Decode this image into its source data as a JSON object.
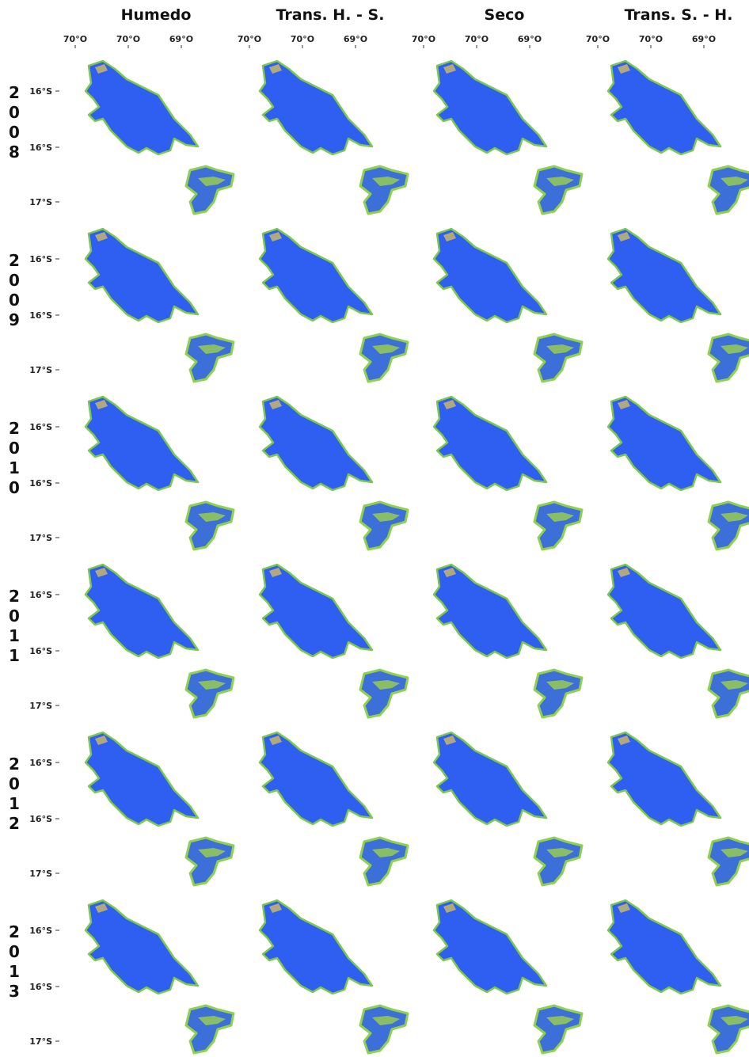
{
  "columns": [
    "Humedo",
    "Trans. H. - S.",
    "Seco",
    "Trans. S. - H."
  ],
  "lon_labels": [
    "70°O",
    "70°O",
    "69°O"
  ],
  "rows": [
    {
      "year": "2008",
      "lat_labels": [
        "16°S",
        "16°S",
        "17°S"
      ]
    },
    {
      "year": "2009",
      "lat_labels": [
        "16°S",
        "16°S",
        "17°S"
      ]
    },
    {
      "year": "2010",
      "lat_labels": [
        "16°S",
        "16°S",
        "17°S"
      ]
    },
    {
      "year": "2011",
      "lat_labels": [
        "16°S",
        "16°S",
        "17°S"
      ]
    },
    {
      "year": "2012",
      "lat_labels": [
        "16°S",
        "16°S",
        "17°S"
      ]
    },
    {
      "year": "2013",
      "lat_labels": [
        "16°S",
        "16°S",
        "17°S"
      ]
    }
  ]
}
